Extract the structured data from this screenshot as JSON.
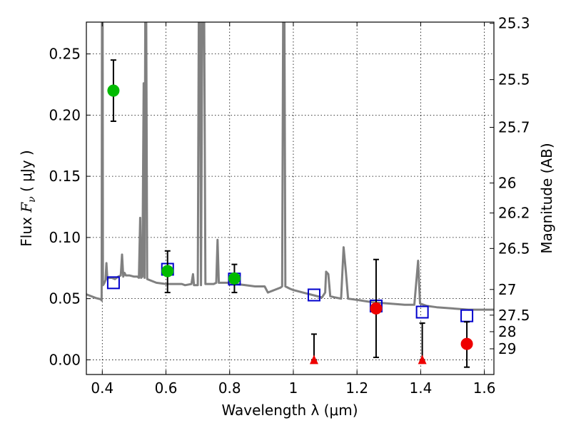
{
  "chart_data": {
    "type": "scatter",
    "xlabel": "Wavelength  λ (μm)",
    "ylabel_prefix": "Flux  ",
    "ylabel_symbol": "F",
    "ylabel_subscript": "ν",
    "ylabel_suffix": "  ( μJy )",
    "y2label": "Magnitude (AB)",
    "xlim": [
      0.35,
      1.63
    ],
    "ylim": [
      -0.012,
      0.276
    ],
    "grid": true,
    "x_ticks": [
      {
        "value": 0.4,
        "label": "0.4"
      },
      {
        "value": 0.6,
        "label": "0.6"
      },
      {
        "value": 0.8,
        "label": "0.8"
      },
      {
        "value": 1.0,
        "label": "1"
      },
      {
        "value": 1.2,
        "label": "1.2"
      },
      {
        "value": 1.4,
        "label": "1.4"
      },
      {
        "value": 1.6,
        "label": "1.6"
      }
    ],
    "y_ticks": [
      {
        "value": 0.0,
        "label": "0.00"
      },
      {
        "value": 0.05,
        "label": "0.05"
      },
      {
        "value": 0.1,
        "label": "0.10"
      },
      {
        "value": 0.15,
        "label": "0.15"
      },
      {
        "value": 0.2,
        "label": "0.20"
      },
      {
        "value": 0.25,
        "label": "0.25"
      }
    ],
    "y2_ticks": [
      {
        "flux": 0.275,
        "label": "25.3"
      },
      {
        "flux": 0.229,
        "label": "25.5"
      },
      {
        "flux": 0.19,
        "label": "25.7"
      },
      {
        "flux": 0.1445,
        "label": "26"
      },
      {
        "flux": 0.12,
        "label": "26.2"
      },
      {
        "flux": 0.091,
        "label": "26.5"
      },
      {
        "flux": 0.0575,
        "label": "27"
      },
      {
        "flux": 0.0365,
        "label": "27.5"
      },
      {
        "flux": 0.023,
        "label": "28"
      },
      {
        "flux": 0.009,
        "label": "29"
      }
    ],
    "colors": {
      "template": "#808080",
      "model": "#0000cc",
      "detected": "#00bb00",
      "measured_red": "#ee0000",
      "errorbar": "#000000"
    },
    "template_spectrum": [
      [
        0.35,
        0.0535
      ],
      [
        0.38,
        0.0505
      ],
      [
        0.395,
        0.0495
      ],
      [
        0.398,
        0.0485
      ],
      [
        0.399,
        0.277
      ],
      [
        0.401,
        0.277
      ],
      [
        0.402,
        0.061
      ],
      [
        0.405,
        0.062
      ],
      [
        0.41,
        0.065
      ],
      [
        0.413,
        0.079
      ],
      [
        0.416,
        0.066
      ],
      [
        0.42,
        0.067
      ],
      [
        0.43,
        0.067
      ],
      [
        0.44,
        0.066
      ],
      [
        0.45,
        0.068
      ],
      [
        0.458,
        0.069
      ],
      [
        0.462,
        0.086
      ],
      [
        0.466,
        0.068
      ],
      [
        0.47,
        0.071
      ],
      [
        0.474,
        0.069
      ],
      [
        0.485,
        0.069
      ],
      [
        0.5,
        0.068
      ],
      [
        0.51,
        0.068
      ],
      [
        0.515,
        0.067
      ],
      [
        0.519,
        0.116
      ],
      [
        0.522,
        0.067
      ],
      [
        0.526,
        0.068
      ],
      [
        0.53,
        0.226
      ],
      [
        0.533,
        0.067
      ],
      [
        0.535,
        0.277
      ],
      [
        0.538,
        0.277
      ],
      [
        0.541,
        0.066
      ],
      [
        0.55,
        0.065
      ],
      [
        0.57,
        0.063
      ],
      [
        0.6,
        0.062
      ],
      [
        0.63,
        0.062
      ],
      [
        0.65,
        0.062
      ],
      [
        0.66,
        0.061
      ],
      [
        0.68,
        0.062
      ],
      [
        0.685,
        0.07
      ],
      [
        0.688,
        0.061
      ],
      [
        0.7,
        0.061
      ],
      [
        0.703,
        0.277
      ],
      [
        0.707,
        0.277
      ],
      [
        0.71,
        0.061
      ],
      [
        0.714,
        0.277
      ],
      [
        0.72,
        0.277
      ],
      [
        0.724,
        0.062
      ],
      [
        0.73,
        0.062
      ],
      [
        0.75,
        0.062
      ],
      [
        0.758,
        0.063
      ],
      [
        0.762,
        0.098
      ],
      [
        0.766,
        0.063
      ],
      [
        0.78,
        0.063
      ],
      [
        0.8,
        0.063
      ],
      [
        0.82,
        0.062
      ],
      [
        0.85,
        0.061
      ],
      [
        0.88,
        0.06
      ],
      [
        0.9,
        0.06
      ],
      [
        0.91,
        0.06
      ],
      [
        0.92,
        0.055
      ],
      [
        0.93,
        0.056
      ],
      [
        0.94,
        0.057
      ],
      [
        0.95,
        0.058
      ],
      [
        0.96,
        0.059
      ],
      [
        0.965,
        0.06
      ],
      [
        0.968,
        0.277
      ],
      [
        0.972,
        0.277
      ],
      [
        0.975,
        0.06
      ],
      [
        0.99,
        0.058
      ],
      [
        1.0,
        0.057
      ],
      [
        1.03,
        0.055
      ],
      [
        1.06,
        0.053
      ],
      [
        1.09,
        0.051
      ],
      [
        1.1,
        0.055
      ],
      [
        1.103,
        0.072
      ],
      [
        1.11,
        0.07
      ],
      [
        1.116,
        0.052
      ],
      [
        1.13,
        0.051
      ],
      [
        1.15,
        0.05
      ],
      [
        1.158,
        0.092
      ],
      [
        1.165,
        0.072
      ],
      [
        1.172,
        0.05
      ],
      [
        1.2,
        0.049
      ],
      [
        1.25,
        0.047
      ],
      [
        1.3,
        0.046
      ],
      [
        1.35,
        0.045
      ],
      [
        1.38,
        0.045
      ],
      [
        1.392,
        0.081
      ],
      [
        1.398,
        0.046
      ],
      [
        1.42,
        0.044
      ],
      [
        1.45,
        0.043
      ],
      [
        1.5,
        0.042
      ],
      [
        1.55,
        0.041
      ],
      [
        1.6,
        0.041
      ],
      [
        1.63,
        0.041
      ]
    ],
    "model_points": [
      {
        "x": 0.435,
        "y": 0.063
      },
      {
        "x": 0.605,
        "y": 0.074
      },
      {
        "x": 0.815,
        "y": 0.066
      },
      {
        "x": 1.065,
        "y": 0.053
      },
      {
        "x": 1.26,
        "y": 0.044
      },
      {
        "x": 1.405,
        "y": 0.039
      },
      {
        "x": 1.545,
        "y": 0.036
      }
    ],
    "detected_points": [
      {
        "x": 0.435,
        "y": 0.22,
        "lo": 0.195,
        "hi": 0.245
      },
      {
        "x": 0.605,
        "y": 0.0725,
        "lo": 0.055,
        "hi": 0.089
      },
      {
        "x": 0.815,
        "y": 0.0665,
        "lo": 0.055,
        "hi": 0.078
      }
    ],
    "red_points": [
      {
        "x": 1.26,
        "y": 0.042,
        "lo": 0.002,
        "hi": 0.082
      },
      {
        "x": 1.545,
        "y": 0.013,
        "lo": -0.006,
        "hi": 0.031
      }
    ],
    "upper_limits": [
      {
        "x": 1.065,
        "y": 0.0,
        "hi": 0.021
      },
      {
        "x": 1.405,
        "y": 0.0,
        "hi": 0.03
      }
    ]
  }
}
